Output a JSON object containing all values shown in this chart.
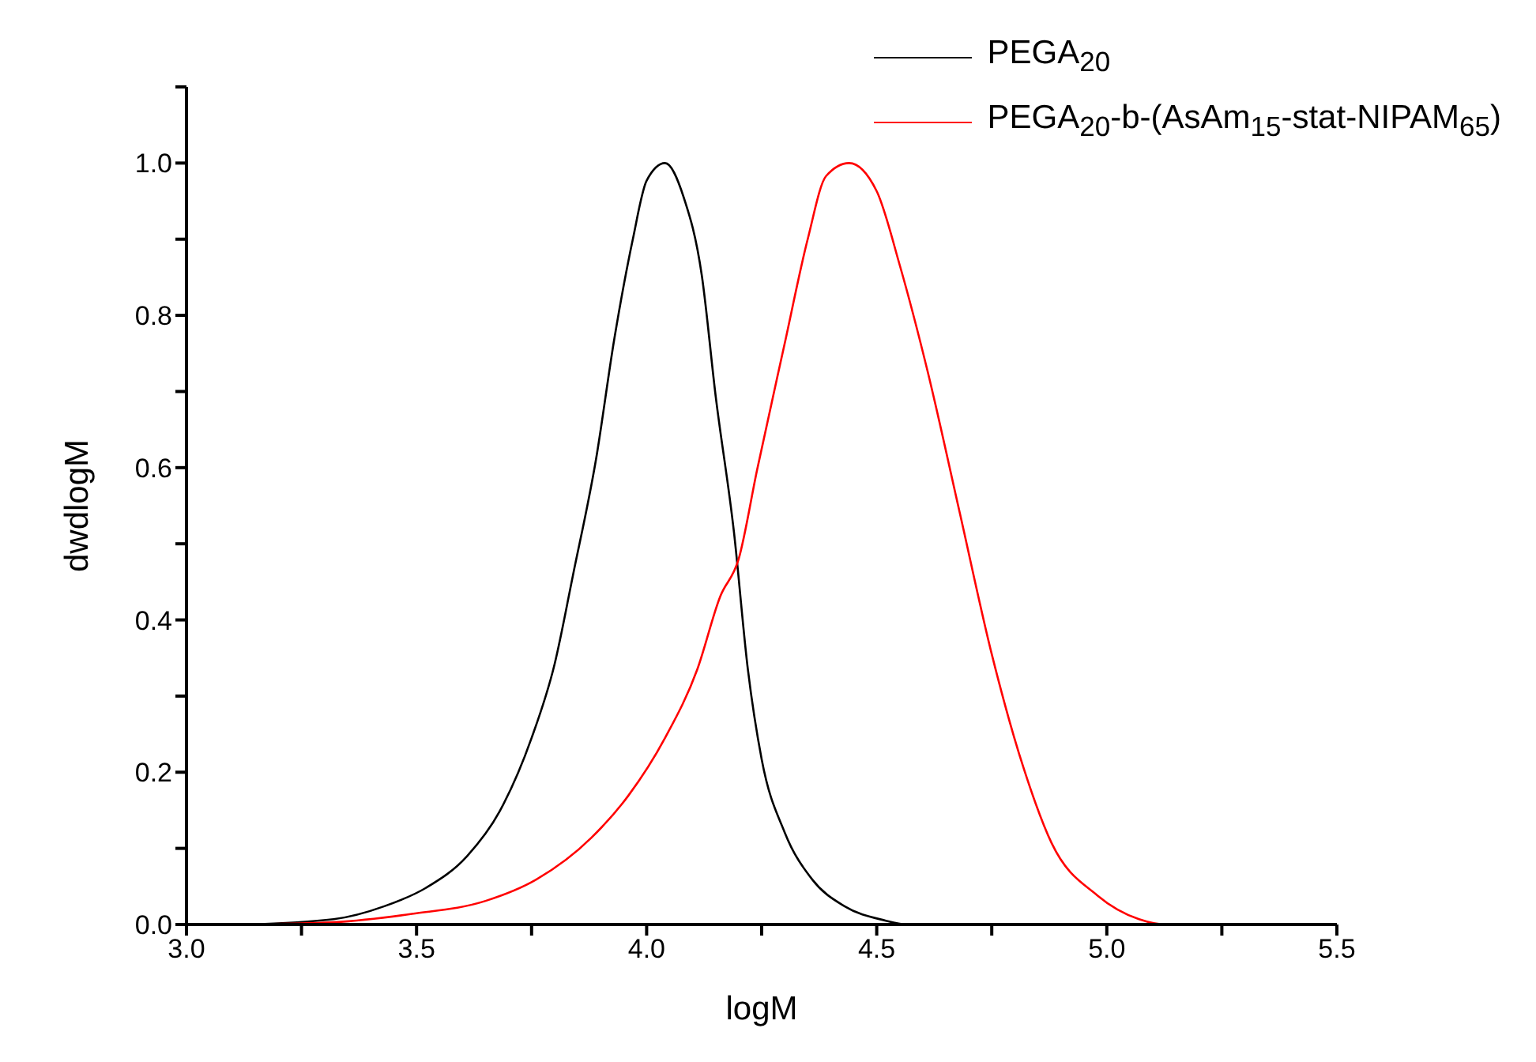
{
  "chart_data": {
    "type": "line",
    "xlabel": "logM",
    "ylabel": "dwdlogM",
    "xlim": [
      3,
      5.5
    ],
    "ylim": [
      0,
      1.1
    ],
    "xticks": [
      {
        "value": 3,
        "label": "3.0"
      },
      {
        "value": 3.25,
        "label": null
      },
      {
        "value": 3.5,
        "label": "3.5"
      },
      {
        "value": 3.75,
        "label": null
      },
      {
        "value": 4,
        "label": "4.0"
      },
      {
        "value": 4.25,
        "label": null
      },
      {
        "value": 4.5,
        "label": "4.5"
      },
      {
        "value": 4.75,
        "label": null
      },
      {
        "value": 5,
        "label": "5.0"
      },
      {
        "value": 5.25,
        "label": null
      },
      {
        "value": 5.5,
        "label": "5.5"
      }
    ],
    "yticks": [
      {
        "value": 0,
        "label": "0.0"
      },
      {
        "value": 0.1,
        "label": null
      },
      {
        "value": 0.2,
        "label": "0.2"
      },
      {
        "value": 0.3,
        "label": null
      },
      {
        "value": 0.4,
        "label": "0.4"
      },
      {
        "value": 0.5,
        "label": null
      },
      {
        "value": 0.6,
        "label": "0.6"
      },
      {
        "value": 0.7,
        "label": null
      },
      {
        "value": 0.8,
        "label": "0.8"
      },
      {
        "value": 0.9,
        "label": null
      },
      {
        "value": 1,
        "label": "1.0"
      },
      {
        "value": 1.1,
        "label": null
      }
    ],
    "legend": "top right",
    "series": [
      {
        "name": "PEGA$_{20}$",
        "color": "#000000",
        "x": [
          3.13,
          3.32,
          3.43,
          3.52,
          3.61,
          3.68,
          3.75,
          3.8,
          3.84,
          3.89,
          3.93,
          3.97,
          4.0,
          4.04,
          4.08,
          4.12,
          4.15,
          4.19,
          4.22,
          4.25,
          4.3,
          4.36,
          4.43,
          4.52,
          4.56
        ],
        "values": [
          0,
          0.007,
          0.024,
          0.048,
          0.09,
          0.148,
          0.245,
          0.342,
          0.459,
          0.611,
          0.77,
          0.9,
          0.977,
          1.0,
          0.956,
          0.852,
          0.694,
          0.514,
          0.335,
          0.217,
          0.121,
          0.059,
          0.024,
          0.005,
          0
        ]
      },
      {
        "name": "PEGA$_{20}$-b-(AsAm$_{15}$-stat-NIPAM$_{65}$)",
        "color": "#ff0000",
        "x": [
          3.13,
          3.32,
          3.49,
          3.65,
          3.76,
          3.88,
          3.96,
          4.04,
          4.11,
          4.16,
          4.2,
          4.24,
          4.3,
          4.35,
          4.39,
          4.44,
          4.5,
          4.55,
          4.61,
          4.68,
          4.75,
          4.82,
          4.88,
          4.98,
          5.07,
          5.13,
          5.31
        ],
        "values": [
          0,
          0.003,
          0.014,
          0.031,
          0.059,
          0.114,
          0.169,
          0.245,
          0.335,
          0.431,
          0.48,
          0.597,
          0.763,
          0.9,
          0.983,
          1.0,
          0.963,
          0.866,
          0.728,
          0.542,
          0.355,
          0.204,
          0.107,
          0.038,
          0.007,
          0,
          0
        ]
      }
    ]
  }
}
